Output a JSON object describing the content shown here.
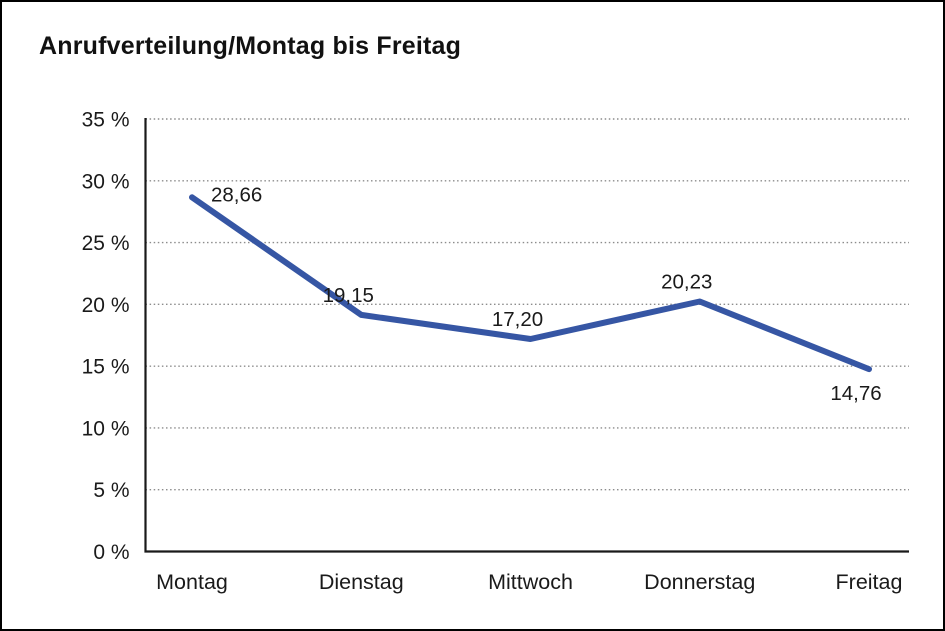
{
  "title": "Anrufverteilung/Montag bis Freitag",
  "chart_data": {
    "type": "line",
    "title": "Anrufverteilung/Montag bis Freitag",
    "categories": [
      "Montag",
      "Dienstag",
      "Mittwoch",
      "Donnerstag",
      "Freitag"
    ],
    "series": [
      {
        "name": "Anrufverteilung",
        "values": [
          28.66,
          19.15,
          17.2,
          20.23,
          14.76
        ],
        "point_labels": [
          "28,66",
          "19,15",
          "17,20",
          "20,23",
          "14,76"
        ]
      }
    ],
    "xlabel": "",
    "ylabel": "",
    "ylim": [
      0,
      35
    ],
    "y_tick_values": [
      0,
      5,
      10,
      15,
      20,
      25,
      30,
      35
    ],
    "y_tick_labels": [
      "0 %",
      "5 %",
      "10 %",
      "15 %",
      "20 %",
      "25 %",
      "30 %",
      "35 %"
    ],
    "grid": "horizontal-dotted",
    "legend": "none",
    "colors": {
      "line": "#3656A4",
      "axis": "#1a1a1a",
      "grid": "#8c8c8c",
      "text": "#1a1a1a",
      "background": "#ffffff"
    }
  }
}
